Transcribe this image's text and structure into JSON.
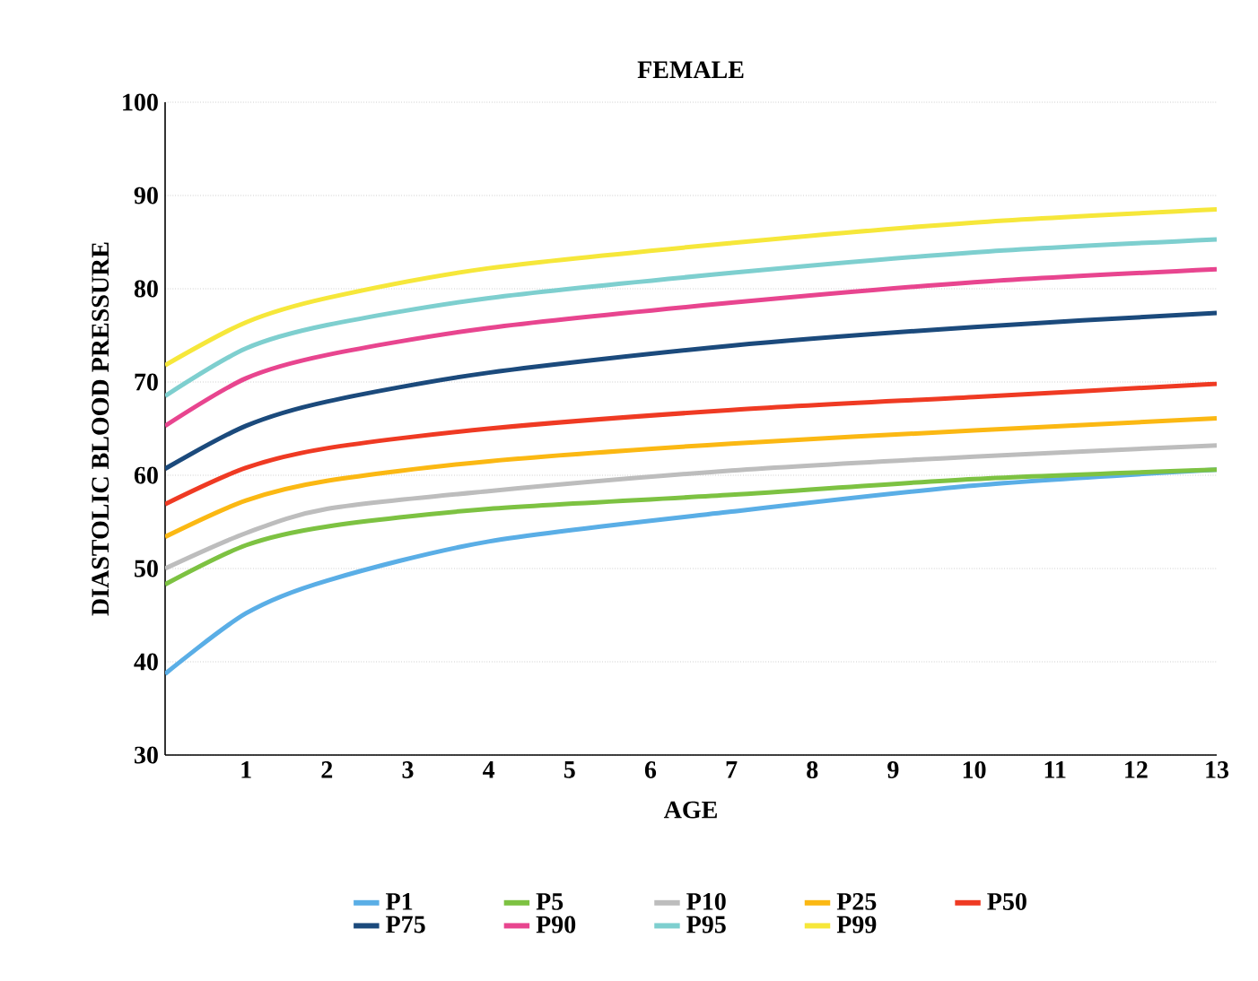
{
  "chart_data": {
    "type": "line",
    "title": "FEMALE",
    "xlabel": "AGE",
    "ylabel": "DIASTOLIC BLOOD PRESSURE",
    "x": [
      0,
      1,
      2,
      4,
      7,
      10,
      13
    ],
    "series": [
      {
        "name": "P1",
        "color": "#5aaee6",
        "values": [
          38.7,
          45.2,
          48.7,
          52.9,
          56.1,
          58.9,
          60.6
        ]
      },
      {
        "name": "P5",
        "color": "#7dc242",
        "values": [
          48.3,
          52.5,
          54.5,
          56.4,
          57.9,
          59.6,
          60.6
        ]
      },
      {
        "name": "P10",
        "color": "#bdbdbd",
        "values": [
          50.0,
          53.8,
          56.4,
          58.3,
          60.5,
          62.0,
          63.2
        ]
      },
      {
        "name": "P25",
        "color": "#fbb813",
        "values": [
          53.4,
          57.3,
          59.4,
          61.5,
          63.4,
          64.8,
          66.1
        ]
      },
      {
        "name": "P50",
        "color": "#ef3a23",
        "values": [
          56.9,
          60.8,
          62.9,
          65.0,
          67.0,
          68.4,
          69.8
        ]
      },
      {
        "name": "P75",
        "color": "#1b4a7c",
        "values": [
          60.7,
          65.3,
          67.9,
          71.0,
          73.9,
          75.9,
          77.4
        ]
      },
      {
        "name": "P90",
        "color": "#e8458f",
        "values": [
          65.3,
          70.4,
          72.9,
          75.8,
          78.5,
          80.7,
          82.1
        ]
      },
      {
        "name": "P95",
        "color": "#7ecfcf",
        "values": [
          68.5,
          73.6,
          76.1,
          79.0,
          81.7,
          83.9,
          85.3
        ]
      },
      {
        "name": "P99",
        "color": "#f6e73a",
        "values": [
          71.8,
          76.4,
          79.0,
          82.2,
          84.9,
          87.1,
          88.5
        ]
      }
    ],
    "xlim": [
      0,
      13
    ],
    "xticks": [
      1,
      2,
      3,
      4,
      5,
      6,
      7,
      8,
      9,
      10,
      11,
      12,
      13
    ],
    "ylim": [
      30,
      100
    ],
    "yticks": [
      30,
      40,
      50,
      60,
      70,
      80,
      90,
      100
    ],
    "grid": "y",
    "legend": "bottom",
    "marker": "none",
    "line_style": "solid"
  }
}
